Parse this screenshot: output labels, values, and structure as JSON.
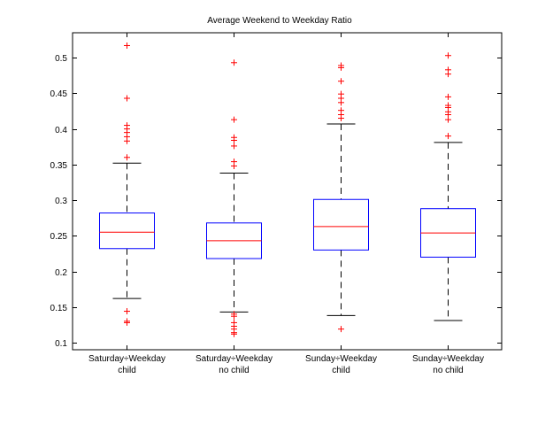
{
  "chart_data": {
    "type": "box",
    "title": "Average Weekend to Weekday Ratio",
    "xlabel": "",
    "ylabel": "",
    "ylim": [
      0.09,
      0.535
    ],
    "yticks": [
      0.1,
      0.15,
      0.2,
      0.25,
      0.3,
      0.35,
      0.4,
      0.45,
      0.5
    ],
    "ytick_labels": [
      "0.1",
      "0.15",
      "0.2",
      "0.25",
      "0.3",
      "0.35",
      "0.4",
      "0.45",
      "0.5"
    ],
    "grid": false,
    "colors": {
      "box": "#0000ff",
      "median": "#ff0000",
      "whisker": "#000000",
      "outlier": "#ff0000"
    },
    "categories": [
      {
        "line1": "Saturday÷Weekday",
        "line2": "child"
      },
      {
        "line1": "Saturday÷Weekday",
        "line2": "no child"
      },
      {
        "line1": "Sunday÷Weekday",
        "line2": "child"
      },
      {
        "line1": "Sunday÷Weekday",
        "line2": "no child"
      }
    ],
    "boxes": [
      {
        "whisker_low": 0.162,
        "q1": 0.232,
        "median": 0.255,
        "q3": 0.282,
        "whisker_high": 0.352,
        "outliers": [
          0.517,
          0.443,
          0.405,
          0.4,
          0.395,
          0.389,
          0.383,
          0.36,
          0.144,
          0.13,
          0.128
        ]
      },
      {
        "whisker_low": 0.143,
        "q1": 0.218,
        "median": 0.243,
        "q3": 0.268,
        "whisker_high": 0.338,
        "outliers": [
          0.493,
          0.413,
          0.388,
          0.384,
          0.376,
          0.354,
          0.348,
          0.14,
          0.137,
          0.128,
          0.123,
          0.119,
          0.114,
          0.112
        ]
      },
      {
        "whisker_low": 0.138,
        "q1": 0.23,
        "median": 0.263,
        "q3": 0.301,
        "whisker_high": 0.407,
        "outliers": [
          0.489,
          0.486,
          0.467,
          0.449,
          0.443,
          0.437,
          0.426,
          0.42,
          0.415,
          0.119
        ]
      },
      {
        "whisker_low": 0.131,
        "q1": 0.22,
        "median": 0.254,
        "q3": 0.288,
        "whisker_high": 0.381,
        "outliers": [
          0.503,
          0.483,
          0.477,
          0.445,
          0.433,
          0.43,
          0.424,
          0.42,
          0.413,
          0.39
        ]
      }
    ]
  }
}
